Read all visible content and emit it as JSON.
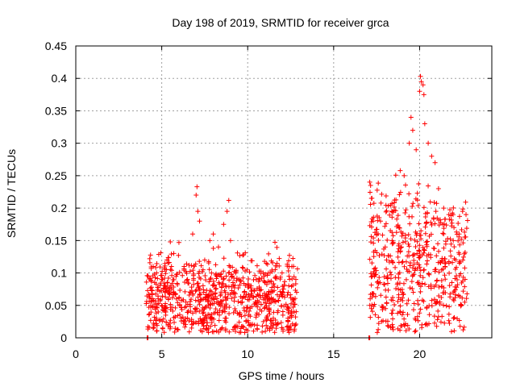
{
  "chart_data": {
    "type": "scatter",
    "title": "Day 198 of 2019, SRMTID for receiver grca",
    "xlabel": "GPS time / hours",
    "ylabel": "SRMTID / TECUs",
    "xlim": [
      0,
      24.2
    ],
    "ylim": [
      0,
      0.45
    ],
    "xticks": [
      0,
      5,
      10,
      15,
      20
    ],
    "yticks": [
      0,
      0.05,
      0.1,
      0.15,
      0.2,
      0.25,
      0.3,
      0.35,
      0.4,
      0.45
    ],
    "xtick_labels": [
      "0",
      "5",
      "10",
      "15",
      "20"
    ],
    "ytick_labels": [
      "0",
      "0.05",
      "0.1",
      "0.15",
      "0.2",
      "0.25",
      "0.3",
      "0.35",
      "0.4",
      "0.45"
    ],
    "grid": true,
    "marker": "+",
    "color": "#ff0000",
    "clusters": [
      {
        "x_start": 4.1,
        "x_end": 12.9,
        "baseline": 0.05,
        "spread": 0.05,
        "max": 0.235
      },
      {
        "x_start": 17.1,
        "x_end": 22.8,
        "baseline": 0.09,
        "spread": 0.09,
        "max": 0.405
      }
    ],
    "series": [
      {
        "name": "SRMTID",
        "points": [
          [
            4.15,
            0.0
          ],
          [
            4.2,
            0.0
          ],
          [
            17.05,
            0.0
          ],
          [
            17.1,
            0.0
          ],
          [
            4.3,
            0.122
          ],
          [
            4.5,
            0.11
          ],
          [
            4.7,
            0.1
          ],
          [
            5.0,
            0.09
          ],
          [
            5.3,
            0.12
          ],
          [
            5.5,
            0.148
          ],
          [
            5.7,
            0.13
          ],
          [
            6.0,
            0.147
          ],
          [
            6.3,
            0.11
          ],
          [
            6.5,
            0.09
          ],
          [
            6.8,
            0.16
          ],
          [
            7.0,
            0.22
          ],
          [
            7.05,
            0.233
          ],
          [
            7.1,
            0.195
          ],
          [
            7.2,
            0.18
          ],
          [
            7.5,
            0.12
          ],
          [
            7.8,
            0.15
          ],
          [
            8.0,
            0.16
          ],
          [
            8.3,
            0.14
          ],
          [
            8.6,
            0.175
          ],
          [
            8.8,
            0.195
          ],
          [
            8.9,
            0.212
          ],
          [
            9.0,
            0.15
          ],
          [
            9.3,
            0.1
          ],
          [
            9.5,
            0.09
          ],
          [
            9.8,
            0.07
          ],
          [
            10.2,
            0.08
          ],
          [
            10.5,
            0.09
          ],
          [
            10.9,
            0.1
          ],
          [
            11.2,
            0.1
          ],
          [
            11.6,
            0.105
          ],
          [
            12.0,
            0.1
          ],
          [
            12.4,
            0.095
          ],
          [
            12.8,
            0.09
          ],
          [
            17.1,
            0.24
          ],
          [
            17.15,
            0.235
          ],
          [
            17.2,
            0.215
          ],
          [
            17.3,
            0.18
          ],
          [
            17.5,
            0.16
          ],
          [
            18.0,
            0.14
          ],
          [
            18.4,
            0.15
          ],
          [
            18.8,
            0.17
          ],
          [
            19.1,
            0.25
          ],
          [
            19.4,
            0.3
          ],
          [
            19.5,
            0.34
          ],
          [
            19.6,
            0.32
          ],
          [
            19.8,
            0.29
          ],
          [
            20.0,
            0.38
          ],
          [
            20.05,
            0.403
          ],
          [
            20.1,
            0.395
          ],
          [
            20.2,
            0.39
          ],
          [
            20.25,
            0.375
          ],
          [
            20.3,
            0.33
          ],
          [
            20.5,
            0.3
          ],
          [
            20.7,
            0.28
          ],
          [
            20.9,
            0.27
          ],
          [
            21.1,
            0.23
          ],
          [
            21.4,
            0.2
          ],
          [
            21.7,
            0.19
          ],
          [
            22.0,
            0.17
          ],
          [
            22.3,
            0.16
          ],
          [
            22.5,
            0.195
          ],
          [
            22.7,
            0.19
          ]
        ]
      }
    ]
  }
}
